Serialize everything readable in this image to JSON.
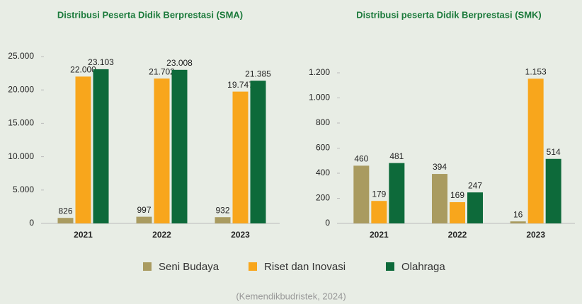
{
  "legend": [
    {
      "name": "Seni Budaya",
      "color": "#a99b60"
    },
    {
      "name": "Riset dan Inovasi",
      "color": "#f8a61c"
    },
    {
      "name": "Olahraga",
      "color": "#0d6a3a"
    }
  ],
  "source": "(Kemendikbudristek, 2024)",
  "chart_data": [
    {
      "type": "bar",
      "title": "Distribusi Peserta Didik Berprestasi (SMA)",
      "categories": [
        "2021",
        "2022",
        "2023"
      ],
      "series": [
        {
          "values": [
            826,
            997,
            932
          ]
        },
        {
          "values": [
            22000,
            21702,
            19747
          ],
          "value_labels": [
            "22.000",
            "21.702",
            "19.747"
          ]
        },
        {
          "values": [
            23103,
            23008,
            21385
          ],
          "value_labels": [
            "23.103",
            "23.008",
            "21.385"
          ]
        }
      ],
      "ylim": [
        0,
        25000
      ],
      "yticks": [
        0,
        {
          "value": 5000,
          "label": "5.000"
        },
        {
          "value": 10000,
          "label": "10.000"
        },
        {
          "value": 15000,
          "label": "15.000"
        },
        {
          "value": 20000,
          "label": "20.000"
        },
        {
          "value": 25000,
          "label": "25.000"
        }
      ]
    },
    {
      "type": "bar",
      "title": "Distribusi peserta Didik Berprestasi (SMK)",
      "categories": [
        "2021",
        "2022",
        "2023"
      ],
      "series": [
        {
          "values": [
            460,
            394,
            16
          ]
        },
        {
          "values": [
            179,
            169,
            1153
          ],
          "value_labels": [
            "179",
            "169",
            "1.153"
          ]
        },
        {
          "values": [
            481,
            247,
            514
          ]
        }
      ],
      "ylim": [
        0,
        1200
      ],
      "yticks": [
        0,
        200,
        400,
        600,
        800,
        {
          "value": 1000,
          "label": "1.000"
        },
        {
          "value": 1200,
          "label": "1.200"
        }
      ]
    }
  ]
}
